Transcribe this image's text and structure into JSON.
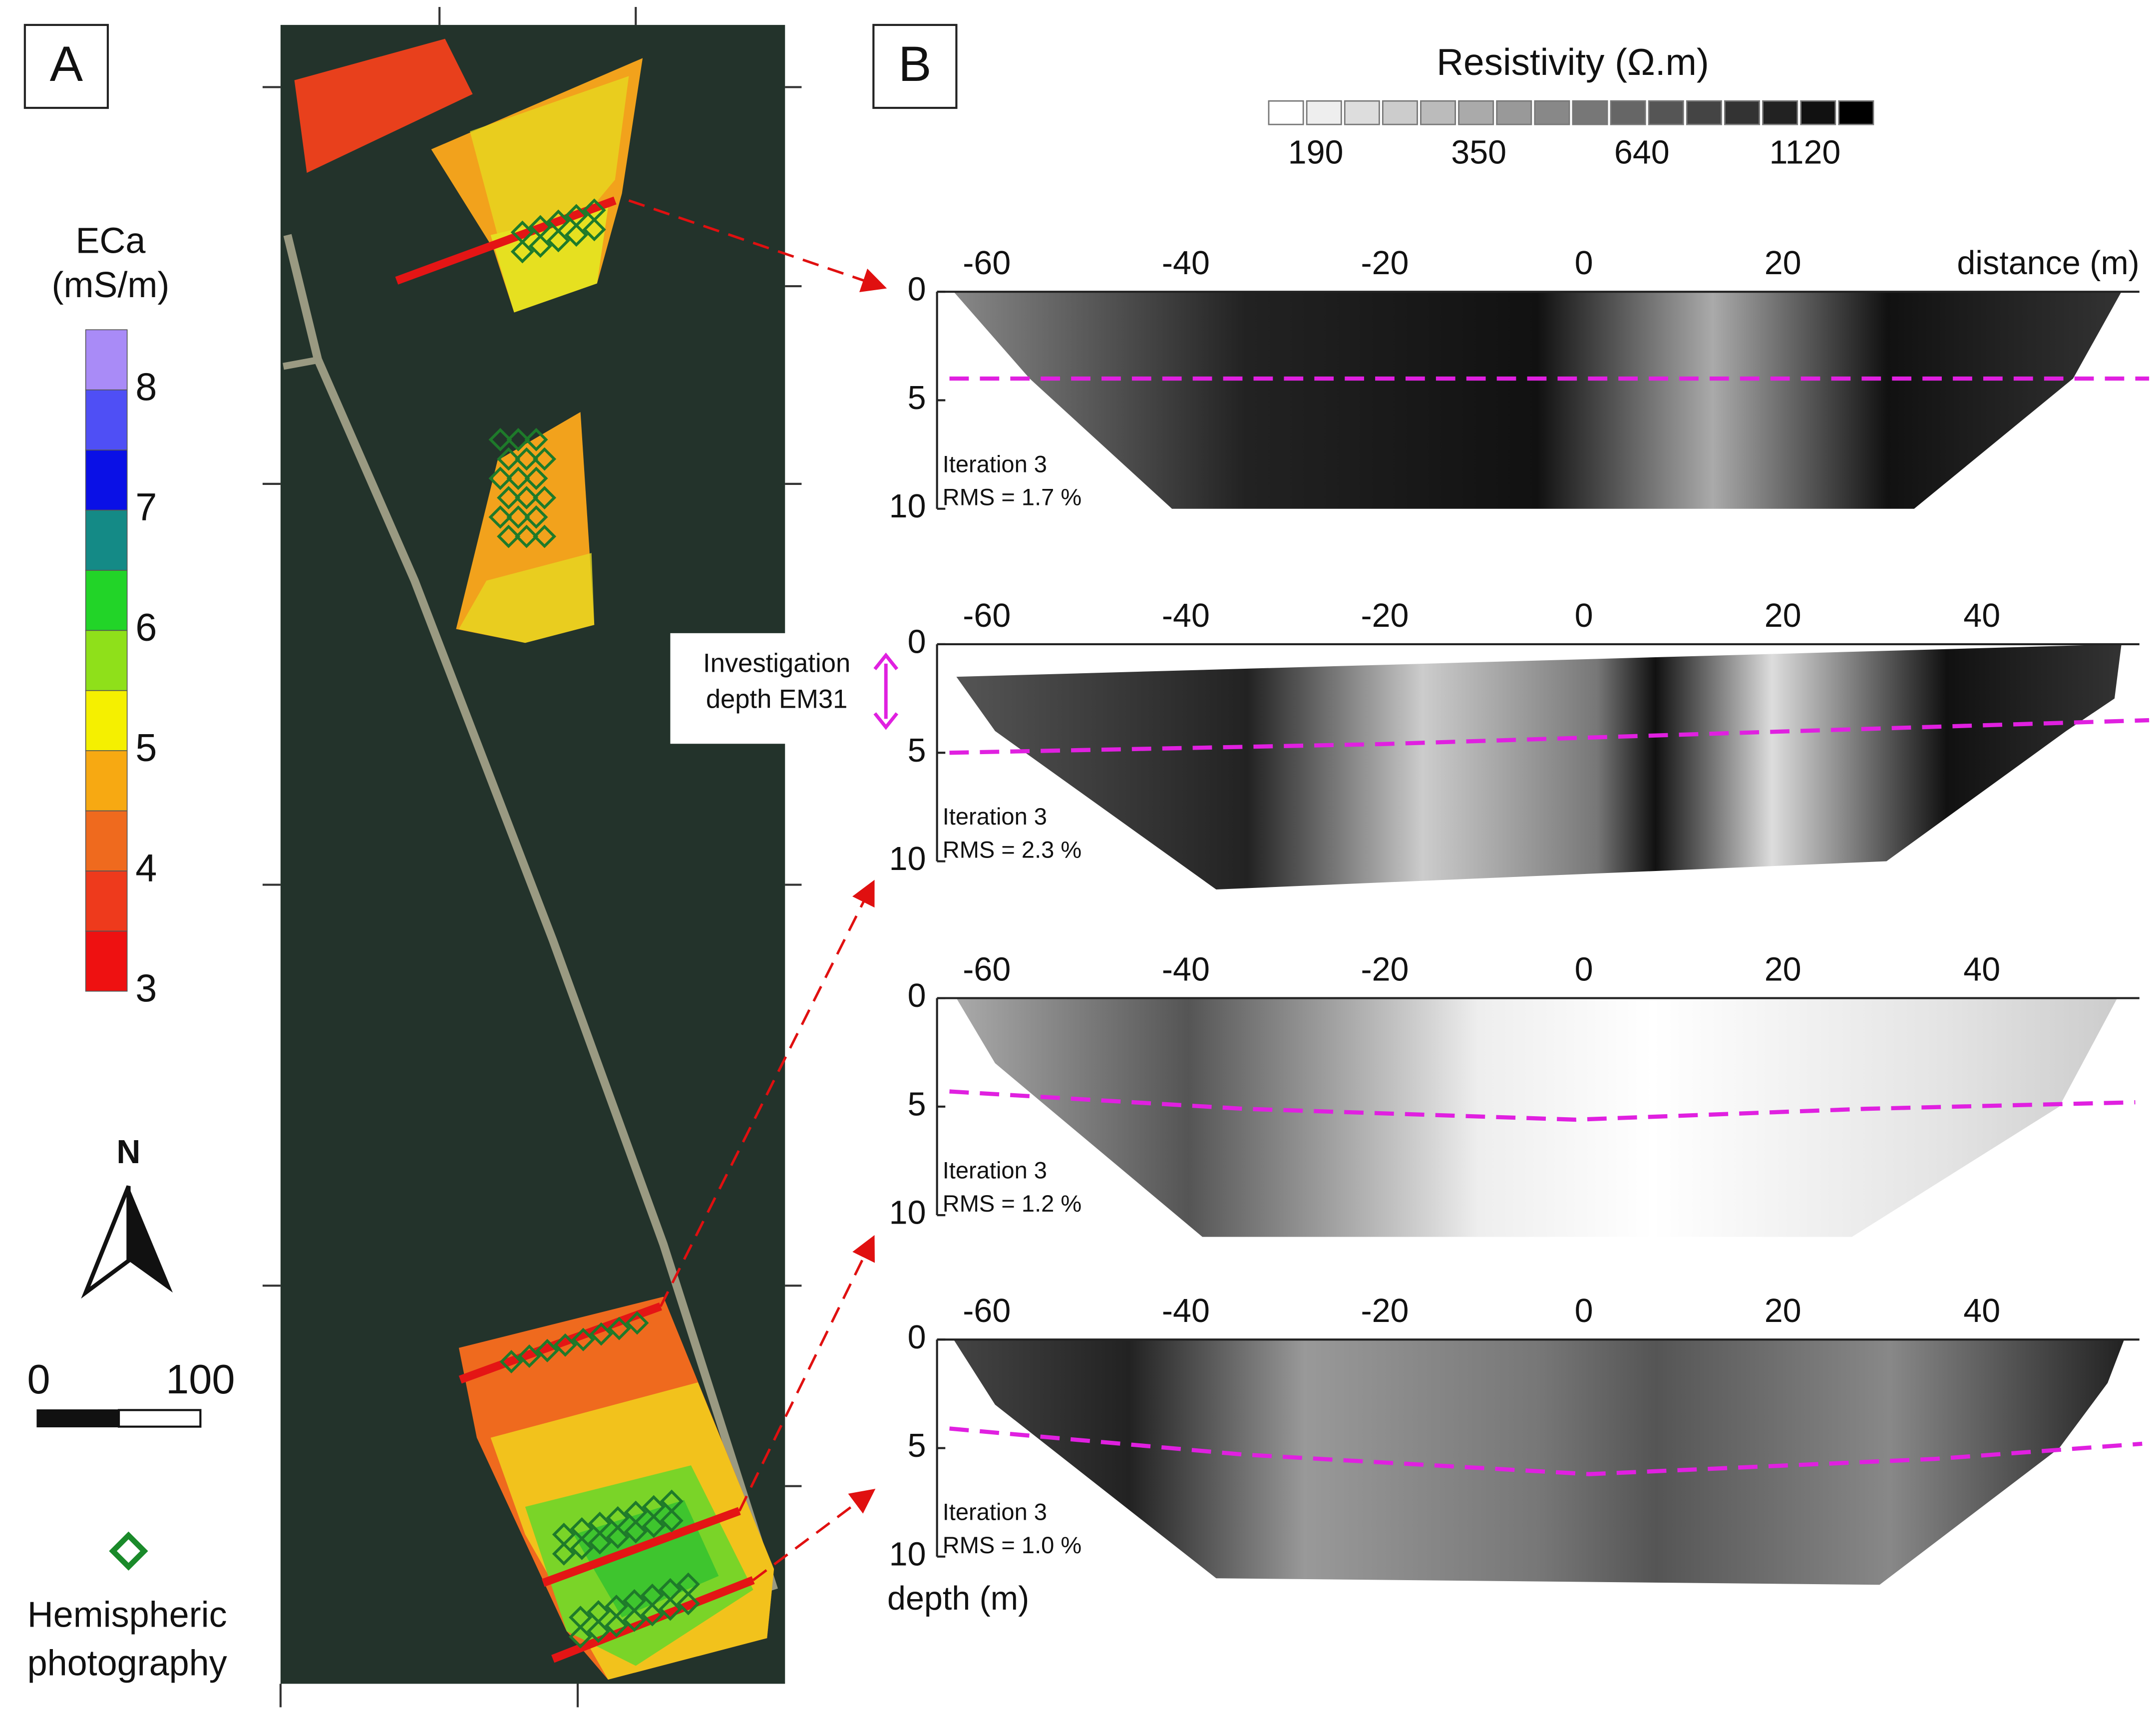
{
  "panel_a": {
    "label": "A",
    "colorbar": {
      "title": [
        "ECa",
        "(mS/m)"
      ],
      "ticks": [
        3,
        4,
        5,
        6,
        7,
        8
      ],
      "colors": [
        "#ee1111",
        "#ee3a1c",
        "#ef6a1e",
        "#f7a912",
        "#f5f000",
        "#8fe01a",
        "#22d428",
        "#148a86",
        "#0a10e6",
        "#4f4ff5",
        "#a98bf7"
      ]
    },
    "north": "N",
    "scale_bar": [
      "0",
      "100"
    ],
    "legend": [
      "Hemispheric",
      "photography"
    ]
  },
  "panel_b": {
    "label": "B",
    "resistivity_legend": {
      "title": "Resistivity (Ω.m)",
      "labels": [
        190,
        350,
        640,
        1120
      ]
    },
    "x_unit": "distance (m)",
    "y_unit": "depth (m)",
    "annotation": [
      "Investigation",
      "depth EM31"
    ],
    "sections": [
      {
        "xticks": [
          -60,
          -40,
          -20,
          0,
          20
        ],
        "yticks": [
          0,
          5,
          10
        ],
        "iteration": "Iteration 3",
        "rms": "RMS = 1.7 %"
      },
      {
        "xticks": [
          -60,
          -40,
          -20,
          0,
          20,
          40
        ],
        "yticks": [
          0,
          5,
          10
        ],
        "iteration": "Iteration 3",
        "rms": "RMS = 2.3 %"
      },
      {
        "xticks": [
          -60,
          -40,
          -20,
          0,
          20,
          40
        ],
        "yticks": [
          0,
          5,
          10
        ],
        "iteration": "Iteration 3",
        "rms": "RMS = 1.2 %"
      },
      {
        "xticks": [
          -60,
          -40,
          -20,
          0,
          20,
          40
        ],
        "yticks": [
          0,
          5,
          10
        ],
        "iteration": "Iteration 3",
        "rms": "RMS = 1.0 %"
      }
    ]
  }
}
